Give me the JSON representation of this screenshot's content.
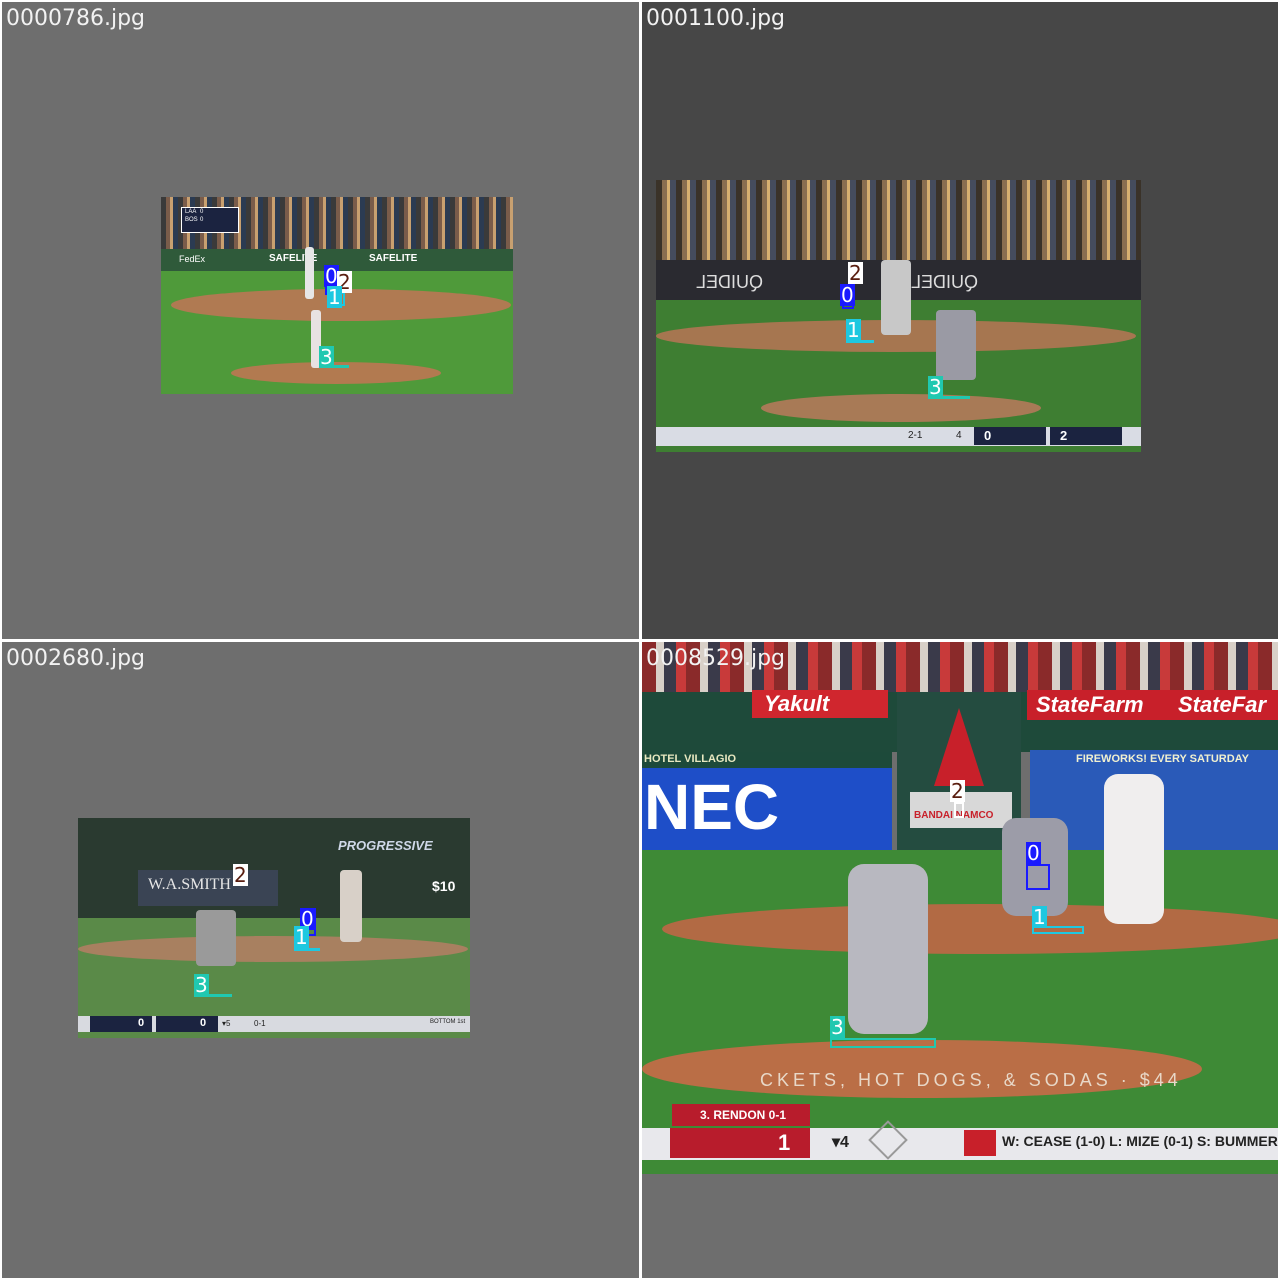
{
  "panels": [
    {
      "filename": "0000786.jpg",
      "labels": [
        "0",
        "2",
        "1",
        "3"
      ],
      "scoreboard": {
        "away": "LAA",
        "away_runs": "0",
        "home": "BOS",
        "home_runs": "0"
      },
      "signage": [
        "SAFELITE",
        "SAFELITE",
        "FedEx"
      ]
    },
    {
      "filename": "0001100.jpg",
      "labels": [
        "2",
        "0",
        "1",
        "3"
      ],
      "scoreboard": {
        "left_score": "0",
        "right_score": "2",
        "inning": "4",
        "count": "2-1"
      },
      "signage": [
        "QUIDEL",
        "QUIDEL"
      ]
    },
    {
      "filename": "0002680.jpg",
      "labels": [
        "2",
        "0",
        "1",
        "3"
      ],
      "scoreboard": {
        "away_runs": "0",
        "home_runs": "0",
        "inning": "▾5",
        "count": "0-1",
        "bottom_text": "BOTTOM 1st"
      },
      "signage": [
        "PROGRESSIVE",
        "W.A.SMITH",
        "$10"
      ]
    },
    {
      "filename": "0008529.jpg",
      "labels": [
        "2",
        "0",
        "1",
        "3"
      ],
      "scoreboard": {
        "batter": "3. RENDON 0-1",
        "score": "1",
        "inning": "▾4",
        "pitchers": "W: CEASE (1-0)   L: MIZE (0-1)   S: BUMMER"
      },
      "signage": [
        "Yakult",
        "StateFarm",
        "StateFar",
        "NEC",
        "FIREWORKS! EVERY SATURDAY",
        "CKETS, HOT DOGS, & SODAS · $44",
        "HOTEL VILLAGIO",
        "BANDAI NAMCO"
      ]
    }
  ],
  "colors": {
    "label0": "#1a1aff",
    "label1": "#1ec8e0",
    "label2": "#ffffff",
    "label3": "#20c8b0",
    "label2_text": "#5a1e10"
  }
}
